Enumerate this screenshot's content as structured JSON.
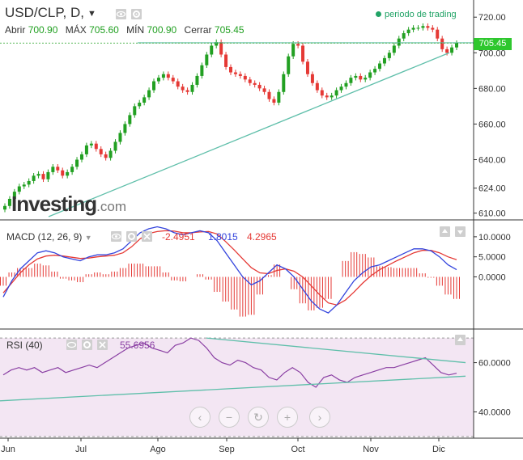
{
  "header": {
    "symbol": "USD/CLP, D,",
    "open_label": "Abrir",
    "open_value": "700.90",
    "high_label": "MÁX",
    "high_value": "705.60",
    "low_label": "MÍN",
    "low_value": "700.90",
    "close_label": "Cerrar",
    "close_value": "705.45",
    "period_legend": "periodo de trading",
    "last_price": "705.45"
  },
  "logo": {
    "main": "Investing",
    "domain": ".com"
  },
  "macd": {
    "label": "MACD (12, 26, 9)",
    "v1": "-2.4951",
    "v2": "1.8015",
    "v3": "4.2965"
  },
  "rsi": {
    "label": "RSI (40)",
    "value": "55.6956"
  },
  "colors": {
    "up": "#22a022",
    "down": "#e53935",
    "trend": "#5fbfaa",
    "macd": "#3344dd",
    "signal": "#e53935",
    "rsi": "#8a3fa3",
    "rsi_band": "#f3e6f3"
  },
  "icons": [
    "eye-icon",
    "gear-icon",
    "close-icon",
    "chevron-left-icon",
    "minus-icon",
    "reset-icon",
    "plus-icon",
    "chevron-right-icon",
    "arrow-up-icon",
    "arrow-down-icon"
  ],
  "chart_data": [
    {
      "type": "candlestick",
      "title": "USD/CLP, D",
      "x_ticks": [
        "Jun",
        "Jul",
        "Ago",
        "Sep",
        "Oct",
        "Nov",
        "Dic"
      ],
      "y_ticks": [
        "610.00",
        "624.00",
        "640.00",
        "660.00",
        "680.00",
        "700.00",
        "720.00"
      ],
      "ylim": [
        608,
        726
      ],
      "close_series": [
        614,
        618,
        622,
        625,
        626,
        628,
        631,
        632,
        629,
        633,
        636,
        634,
        631,
        633,
        636,
        640,
        643,
        648,
        649,
        646,
        643,
        641,
        645,
        650,
        655,
        660,
        665,
        670,
        672,
        675,
        679,
        684,
        686,
        688,
        686,
        684,
        681,
        679,
        678,
        682,
        687,
        693,
        699,
        704,
        706,
        699,
        692,
        689,
        688,
        687,
        685,
        683,
        682,
        680,
        678,
        674,
        672,
        678,
        688,
        698,
        705,
        704,
        695,
        688,
        683,
        679,
        676,
        675,
        676,
        679,
        681,
        683,
        686,
        687,
        685,
        686,
        689,
        691,
        694,
        697,
        700,
        704,
        708,
        711,
        713,
        714,
        714,
        715,
        714,
        713,
        708,
        702,
        700,
        703,
        705.45
      ],
      "resistance_line": 705.6,
      "trend_line": [
        [
          624,
          608
        ],
        [
          98,
          700
        ]
      ]
    },
    {
      "type": "line",
      "title": "MACD (12, 26, 9)",
      "y_ticks": [
        "0.0000",
        "5.0000",
        "10.0000"
      ],
      "ylim": [
        -12,
        13
      ],
      "macd": [
        -5,
        -1,
        2,
        4,
        6,
        6.5,
        6,
        5,
        4.5,
        4,
        5,
        5.5,
        5.5,
        6,
        7,
        9,
        11,
        12,
        12.5,
        12,
        11,
        10.5,
        11,
        11.5,
        11,
        9,
        6,
        3,
        0,
        -2,
        -1,
        1,
        3,
        2,
        0,
        -3,
        -6,
        -8,
        -9,
        -7,
        -4,
        -1,
        1,
        2.5,
        3,
        4,
        5,
        6,
        7,
        7,
        6.5,
        5,
        3,
        1.8
      ],
      "signal": [
        -4,
        -1.5,
        1,
        3,
        4.5,
        5.2,
        5.4,
        5.2,
        4.9,
        4.6,
        4.7,
        5,
        5.2,
        5.4,
        6,
        7.5,
        9.5,
        10.8,
        11.3,
        11.5,
        11.4,
        11,
        11,
        11.2,
        11.3,
        10.7,
        8.8,
        6.7,
        4.5,
        2.3,
        1,
        0.8,
        1.6,
        2,
        1.4,
        0,
        -2.2,
        -4.5,
        -6.5,
        -7,
        -5.8,
        -3.8,
        -1.6,
        0.3,
        1.8,
        2.9,
        4,
        5,
        6,
        6.6,
        6.6,
        6,
        5,
        4.3
      ],
      "values_shown": [
        "-2.4951",
        "1.8015",
        "4.2965"
      ]
    },
    {
      "type": "line",
      "title": "RSI (40)",
      "y_ticks": [
        "40.0000",
        "60.0000"
      ],
      "ylim": [
        30,
        72
      ],
      "band": [
        30,
        70
      ],
      "rsi": [
        55,
        57,
        58,
        57,
        58,
        56,
        57,
        58,
        56,
        57,
        58,
        59,
        58,
        60,
        62,
        64,
        66,
        67,
        68,
        66,
        65,
        64,
        67,
        68,
        70,
        69,
        66,
        62,
        60,
        59,
        61,
        60,
        58,
        57,
        54,
        53,
        56,
        58,
        56,
        52,
        50,
        54,
        55,
        53,
        52,
        54,
        55,
        56,
        57,
        58,
        58,
        59,
        60,
        61,
        62,
        59,
        56,
        55,
        55.7
      ],
      "value_shown": "55.6956"
    }
  ]
}
